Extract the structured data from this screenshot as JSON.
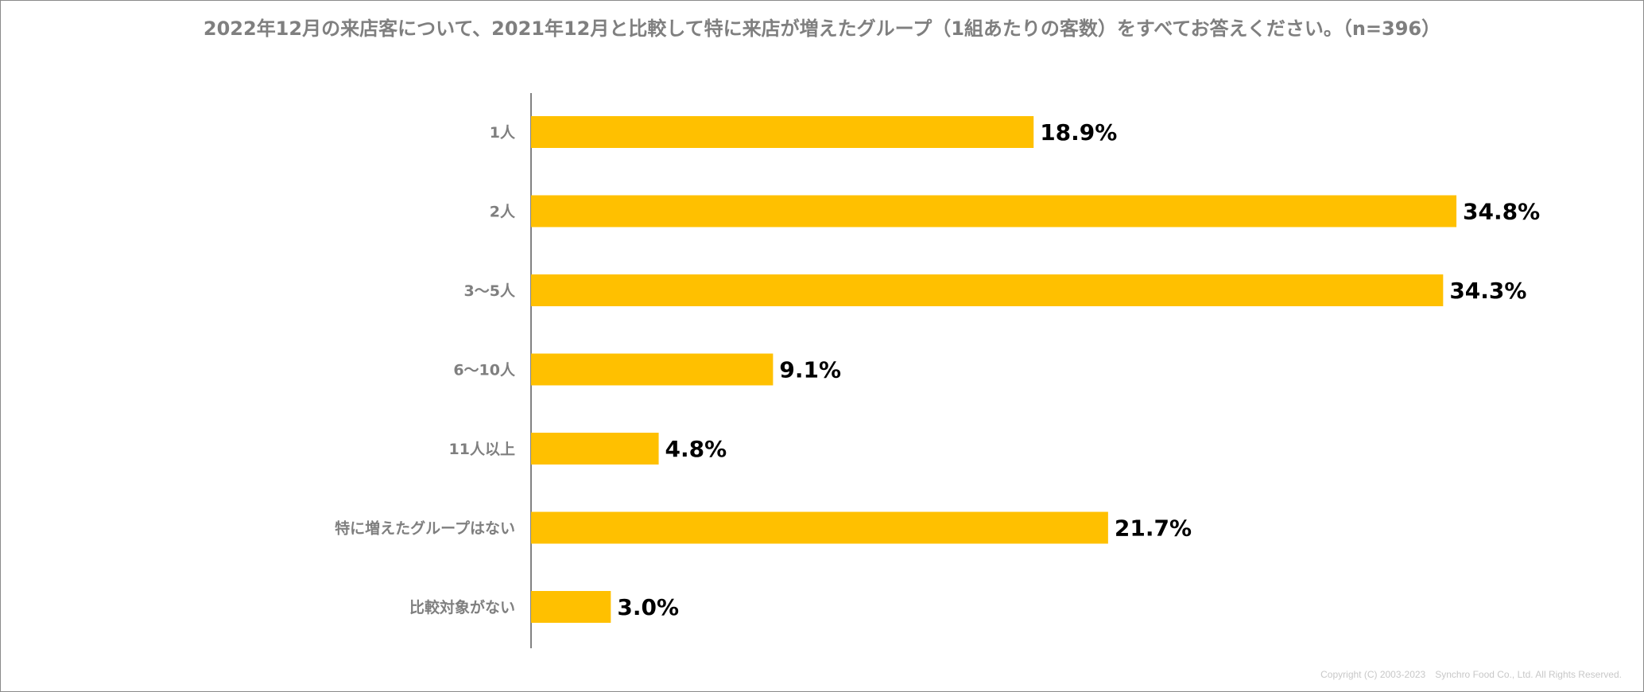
{
  "title": "2022年12月の来店客について、2021年12月と比較して特に来店が増えたグループ（1組あたりの客数）をすべてお答えください。（n=396）",
  "copyright": "Copyright (C) 2003-2023　Synchro Food Co., Ltd. All Rights Reserved.",
  "colors": {
    "bar": "#FFC000",
    "axis": "#595959",
    "category_text": "#7F7F7F",
    "value_text": "#000000"
  },
  "chart_data": {
    "type": "bar",
    "orientation": "horizontal",
    "title": "2022年12月の来店客について、2021年12月と比較して特に来店が増えたグループ（1組あたりの客数）をすべてお答えください。（n=396）",
    "categories": [
      "1人",
      "2人",
      "3〜5人",
      "6〜10人",
      "11人以上",
      "特に増えたグループはない",
      "比較対象がない"
    ],
    "values": [
      18.9,
      34.8,
      34.3,
      9.1,
      4.8,
      21.7,
      3.0
    ],
    "labels": [
      "18.9%",
      "34.8%",
      "34.3%",
      "9.1%",
      "4.8%",
      "21.7%",
      "3.0%"
    ],
    "unit": "%",
    "grid": false,
    "legend": "none"
  }
}
